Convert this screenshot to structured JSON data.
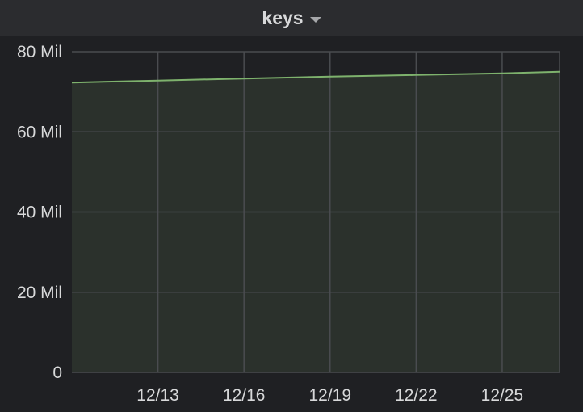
{
  "panel": {
    "title": "keys"
  },
  "colors": {
    "background": "#1f2023",
    "header": "#2b2c2f",
    "grid": "#4a4c50",
    "series_line": "#7eb26d",
    "series_fill": "#2b312c",
    "text": "#d8d9da"
  },
  "chart_data": {
    "type": "area",
    "title": "keys",
    "xlabel": "",
    "ylabel": "",
    "x_ticks": [
      "12/13",
      "12/16",
      "12/19",
      "12/22",
      "12/25"
    ],
    "x_range": [
      "12/10",
      "12/27"
    ],
    "ylim": [
      0,
      80000000
    ],
    "y_ticks": [
      {
        "value": 0,
        "label": "0"
      },
      {
        "value": 20000000,
        "label": "20 Mil"
      },
      {
        "value": 40000000,
        "label": "40 Mil"
      },
      {
        "value": 60000000,
        "label": "60 Mil"
      },
      {
        "value": 80000000,
        "label": "80 Mil"
      }
    ],
    "grid": true,
    "legend": "none",
    "series": [
      {
        "x": [
          "12/10",
          "12/13",
          "12/16",
          "12/19",
          "12/22",
          "12/25",
          "12/27"
        ],
        "values": [
          72300000,
          72800000,
          73300000,
          73800000,
          74200000,
          74600000,
          75000000
        ]
      }
    ]
  }
}
